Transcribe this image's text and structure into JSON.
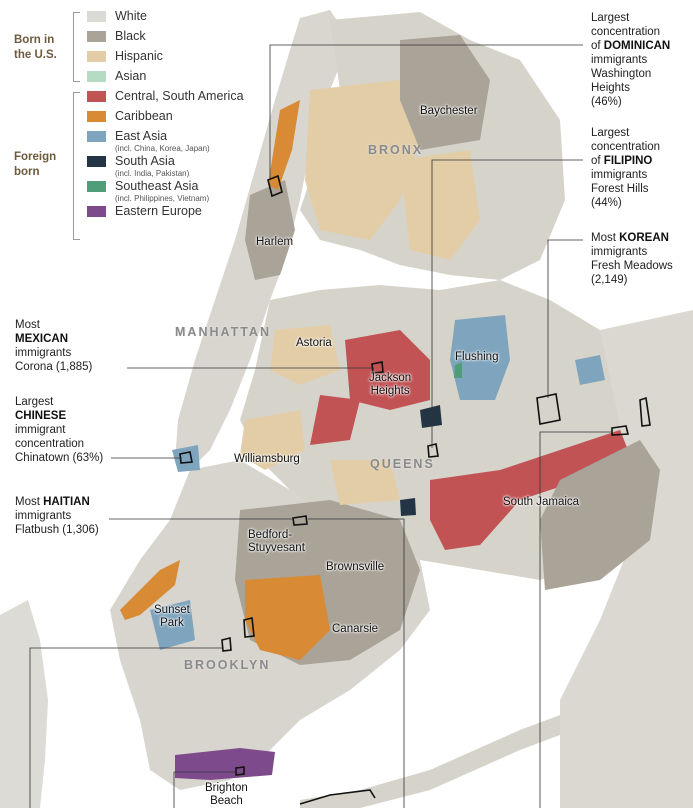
{
  "legend": {
    "born_label": "Born in\nthe U.S.",
    "foreign_label": "Foreign\nborn",
    "born_items": [
      {
        "label": "White",
        "color": "#dcdad4"
      },
      {
        "label": "Black",
        "color": "#a9a398"
      },
      {
        "label": "Hispanic",
        "color": "#e3cda6"
      },
      {
        "label": "Asian",
        "color": "#b6dbc3"
      }
    ],
    "foreign_items": [
      {
        "label": "Central, South America",
        "note": "",
        "color": "#c25355"
      },
      {
        "label": "Caribbean",
        "note": "",
        "color": "#d88a34"
      },
      {
        "label": "East Asia",
        "note": "(incl. China, Korea, Japan)",
        "color": "#7fa4bd"
      },
      {
        "label": "South Asia",
        "note": "(incl. India, Pakistan)",
        "color": "#233544"
      },
      {
        "label": "Southeast Asia",
        "note": "(incl. Philippines, Vietnam)",
        "color": "#4f9e79"
      },
      {
        "label": "Eastern Europe",
        "note": "",
        "color": "#7d4b8c"
      }
    ]
  },
  "annotations": {
    "dominican": {
      "pre": "Largest\nconcentration\nof ",
      "bold": "DOMINICAN",
      "post": "\nimmigrants\nWashington\nHeights\n(46%)"
    },
    "filipino": {
      "pre": "Largest\nconcentration\nof ",
      "bold": "FILIPINO",
      "post": "\nimmigrants\nForest Hills\n(44%)"
    },
    "korean": {
      "pre": "Most ",
      "bold": "KOREAN",
      "post": "\nimmigrants\nFresh Meadows\n(2,149)"
    },
    "mexican": {
      "pre": "Most\n",
      "bold": "MEXICAN",
      "post": "\nimmigrants\nCorona (1,885)"
    },
    "chinese": {
      "pre": "Largest\n",
      "bold": "CHINESE",
      "post": "\nimmigrant\nconcentration\nChinatown (63%)"
    },
    "haitian": {
      "pre": "Most ",
      "bold": "HAITIAN",
      "post": "\nimmigrants\nFlatbush (1,306)"
    }
  },
  "boroughs": {
    "bronx": "BRONX",
    "manhattan": "MANHATTAN",
    "queens": "QUEENS",
    "brooklyn": "BROOKLYN"
  },
  "places": {
    "baychester": "Baychester",
    "harlem": "Harlem",
    "astoria": "Astoria",
    "jackson_heights": "Jackson\nHeights",
    "flushing": "Flushing",
    "williamsburg": "Williamsburg",
    "south_jamaica": "South Jamaica",
    "bed_stuy": "Bedford-\nStuyvesant",
    "brownsville": "Brownsville",
    "sunset_park": "Sunset\nPark",
    "canarsie": "Canarsie",
    "brighton_beach": "Brighton\nBeach"
  }
}
